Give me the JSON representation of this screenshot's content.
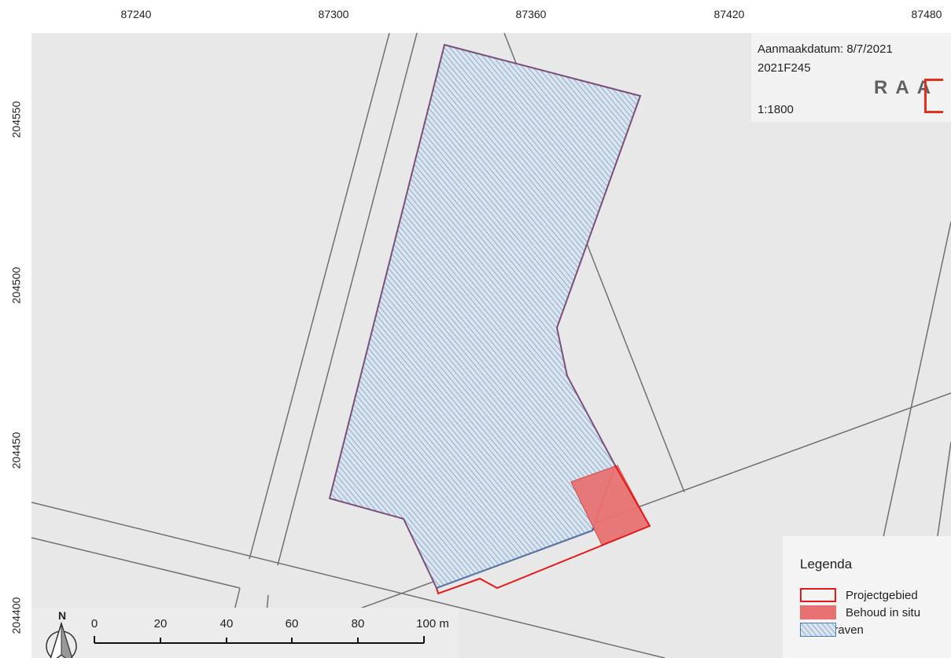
{
  "x_ticks": [
    "87240",
    "87300",
    "87360",
    "87420",
    "87480"
  ],
  "y_ticks": [
    "204550",
    "204500",
    "204450",
    "204400"
  ],
  "info": {
    "date_label": "Aanmaakdatum: 8/7/2021",
    "project_code": "2021F245",
    "scale": "1:1800",
    "logo_text": "RAA"
  },
  "legend": {
    "title": "Legenda",
    "items": [
      {
        "label": "Projectgebied",
        "color": "#e31a1c",
        "style": "outline"
      },
      {
        "label": "Behoud in situ",
        "color": "#e87272",
        "style": "fill"
      },
      {
        "label": "Af te graven",
        "color": "#4a7fb0",
        "style": "hatch"
      }
    ]
  },
  "scalebar": {
    "labels": [
      "0",
      "20",
      "40",
      "60",
      "80",
      "100 m"
    ]
  },
  "north": {
    "label": "N"
  },
  "colors": {
    "map_background": "#e8e8e8",
    "parcel_lines": "#707070",
    "dig_outline": "#7a4f7a",
    "hatch": "#6a8fb8",
    "project_outline": "#e31a1c",
    "in_situ_fill": "#e87272"
  }
}
